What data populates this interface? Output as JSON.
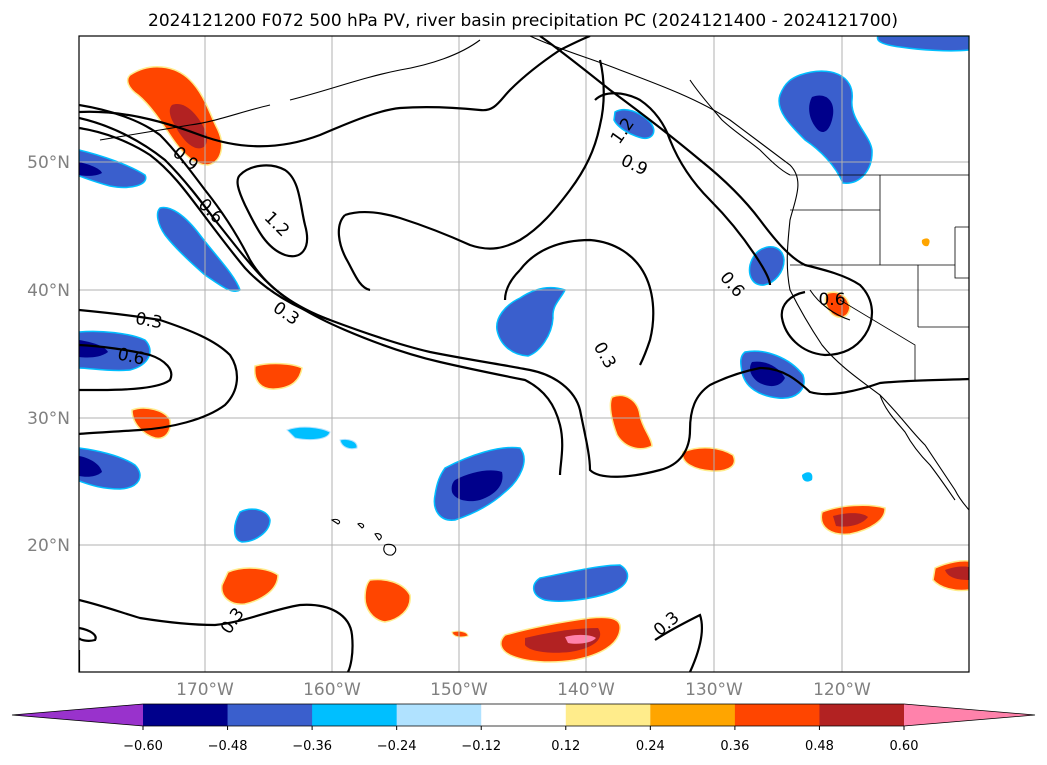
{
  "title": "2024121200 F072 500 hPa PV, river basin precipitation PC (2024121400 - 2024121700)",
  "lat_labels": [
    "50°N",
    "40°N",
    "30°N",
    "20°N"
  ],
  "lon_labels": [
    "170°W",
    "160°W",
    "150°W",
    "140°W",
    "130°W",
    "120°W"
  ],
  "contour_labels": {
    "c09_left": "0.9",
    "c06_left": "0.6",
    "c12_left": "1.2",
    "c03_left": "0.3",
    "c03_mid": "0.3",
    "c03_low": "0.3",
    "c06_far": "0.6",
    "c12_right": "1.2",
    "c09_right": "0.9",
    "c06_right": "0.6",
    "c03_center": "0.3",
    "c06_coast": "0.6",
    "c03_bottom": "0.3"
  },
  "colorbar": {
    "ticks": [
      "−0.60",
      "−0.48",
      "−0.36",
      "−0.24",
      "−0.12",
      "0.12",
      "0.24",
      "0.36",
      "0.48",
      "0.60"
    ],
    "colors": [
      "#9932cc",
      "#00008b",
      "#3a5fcd",
      "#00bfff",
      "#b0e2ff",
      "#ffffff",
      "#ffec8b",
      "#ffa500",
      "#ff4500",
      "#b22222",
      "#ff82ab"
    ]
  },
  "palette": {
    "neg_strong": "#00008b",
    "neg_med": "#3a5fcd",
    "neg_light": "#00bfff",
    "pos_light": "#ffec8b",
    "pos_med": "#ff4500",
    "pos_strong": "#b22222",
    "pos_extreme": "#ff82ab"
  }
}
